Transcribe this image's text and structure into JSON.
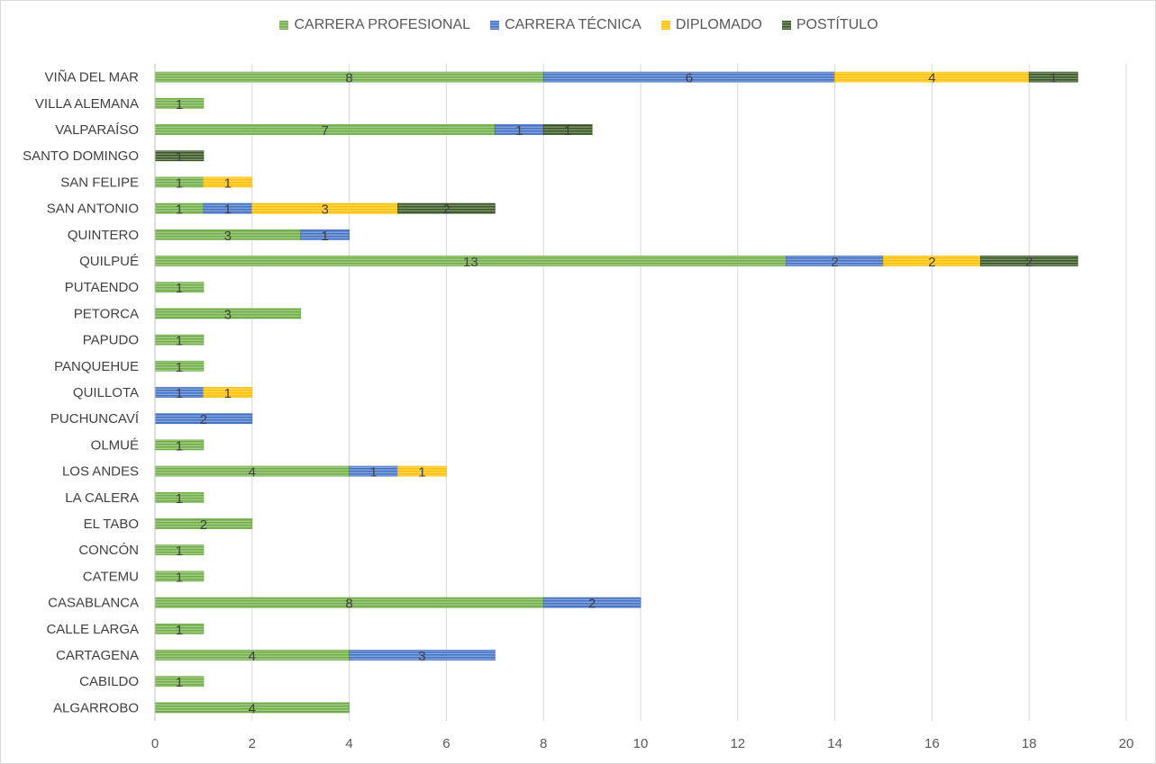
{
  "chart_data": {
    "type": "bar",
    "orientation": "horizontal",
    "stacked": true,
    "categories": [
      "VIÑA DEL MAR",
      "VILLA ALEMANA",
      "VALPARAÍSO",
      "SANTO DOMINGO",
      "SAN FELIPE",
      "SAN ANTONIO",
      "QUINTERO",
      "QUILPUÉ",
      "PUTAENDO",
      "PETORCA",
      "PAPUDO",
      "PANQUEHUE",
      "QUILLOTA",
      "PUCHUNCAVÍ",
      "OLMUÉ",
      "LOS ANDES",
      "LA CALERA",
      "EL TABO",
      "CONCÓN",
      "CATEMU",
      "CASABLANCA",
      "CALLE LARGA",
      "CARTAGENA",
      "CABILDO",
      "ALGARROBO"
    ],
    "series": [
      {
        "name": "CARRERA PROFESIONAL",
        "color": "#70ad47",
        "values": [
          8,
          1,
          7,
          0,
          1,
          1,
          3,
          13,
          1,
          3,
          1,
          1,
          0,
          0,
          1,
          4,
          1,
          2,
          1,
          1,
          8,
          1,
          4,
          1,
          4
        ]
      },
      {
        "name": "CARRERA TÉCNICA",
        "color": "#4472c4",
        "values": [
          6,
          0,
          1,
          0,
          0,
          1,
          1,
          2,
          0,
          0,
          0,
          0,
          1,
          2,
          0,
          1,
          0,
          0,
          0,
          0,
          2,
          0,
          3,
          0,
          0
        ]
      },
      {
        "name": "DIPLOMADO",
        "color": "#ffc000",
        "values": [
          4,
          0,
          0,
          0,
          1,
          3,
          0,
          2,
          0,
          0,
          0,
          0,
          1,
          0,
          0,
          1,
          0,
          0,
          0,
          0,
          0,
          0,
          0,
          0,
          0
        ]
      },
      {
        "name": "POSTÍTULO",
        "color": "#375623",
        "values": [
          1,
          0,
          1,
          1,
          0,
          2,
          0,
          2,
          0,
          0,
          0,
          0,
          0,
          0,
          0,
          0,
          0,
          0,
          0,
          0,
          0,
          0,
          0,
          0,
          0
        ]
      }
    ],
    "xlim": [
      0,
      20
    ],
    "xticks": [
      "0",
      "2",
      "4",
      "6",
      "8",
      "10",
      "12",
      "14",
      "16",
      "18",
      "20"
    ],
    "legend_position": "top",
    "grid": "vertical"
  }
}
